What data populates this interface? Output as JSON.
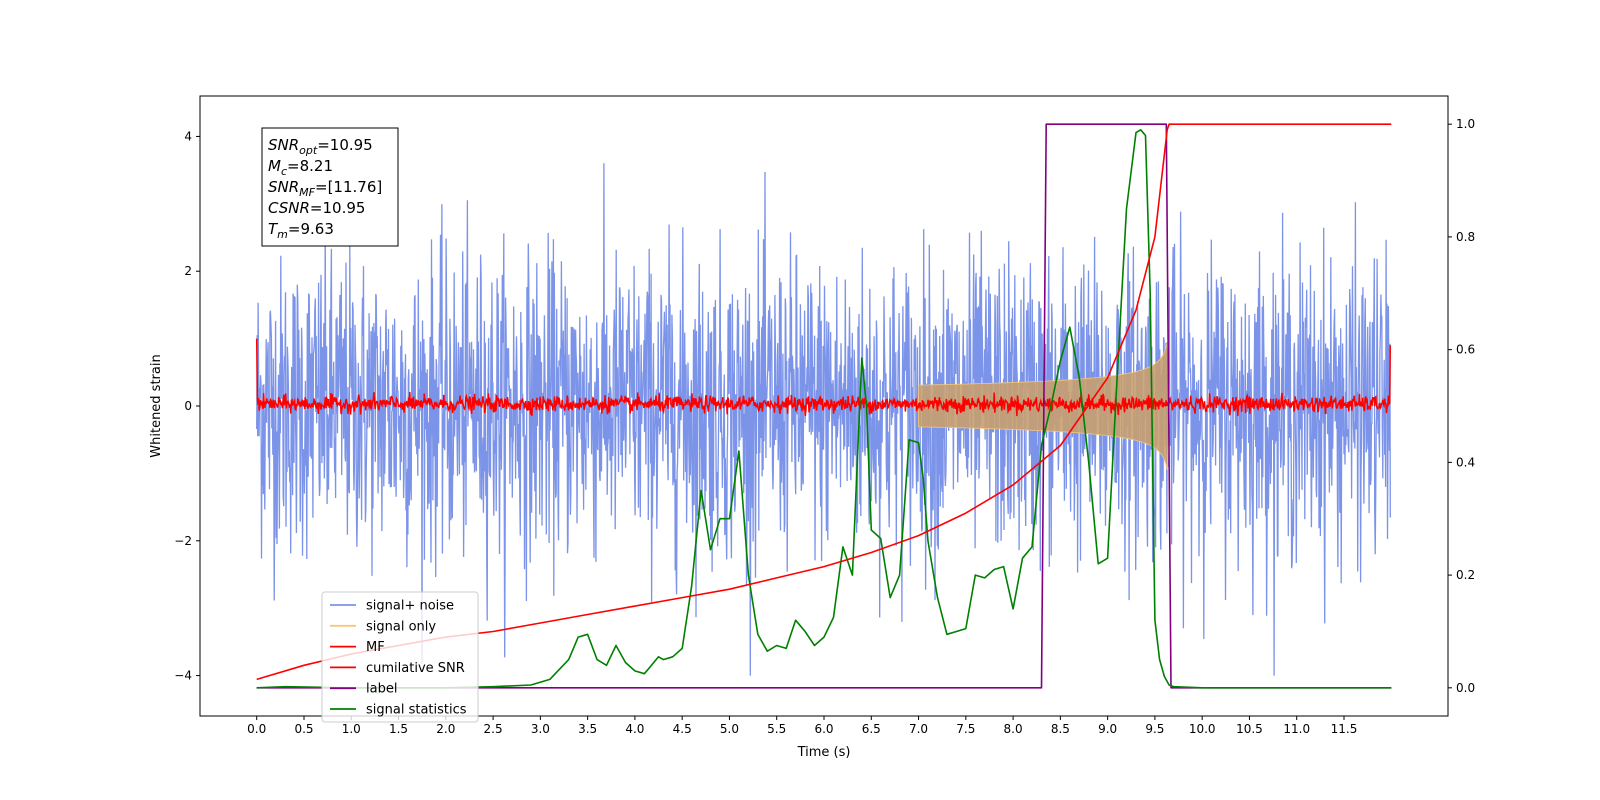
{
  "chart_data": {
    "type": "line",
    "xlabel": "Time (s)",
    "ylabel": "Whitened strain",
    "xlim": [
      -0.6,
      12.6
    ],
    "ylim": [
      -4.6,
      4.6
    ],
    "y2lim": [
      -0.05,
      1.05
    ],
    "x_ticks": [
      "0.0",
      "0.5",
      "1.0",
      "1.5",
      "2.0",
      "2.5",
      "3.0",
      "3.5",
      "4.0",
      "4.5",
      "5.0",
      "5.5",
      "6.0",
      "6.5",
      "7.0",
      "7.5",
      "8.0",
      "8.5",
      "9.0",
      "9.5",
      "10.0",
      "10.5",
      "11.0",
      "11.5"
    ],
    "y_ticks": [
      "4",
      "2",
      "0",
      "−2",
      "−4"
    ],
    "y2_ticks": [
      "1.0",
      "0.8",
      "0.6",
      "0.4",
      "0.2",
      "0.0"
    ],
    "grid": false,
    "legend_placement": "lower-left",
    "colors": {
      "signal_noise": "#7b93e8",
      "signal_only": "#f5c77a",
      "signal_fill": "#c8a070",
      "mf": "#ff0000",
      "cumulative_snr": "#ff0000",
      "label": "#800080",
      "signal_statistics": "#008000"
    },
    "annotation": {
      "lines": [
        {
          "label": "SNR",
          "sub": "opt",
          "value": "=10.95"
        },
        {
          "label": "M",
          "sub": "c",
          "value": "=8.21"
        },
        {
          "label": "SNR",
          "sub": "MF",
          "value": "=[11.76]"
        },
        {
          "label": "CSNR",
          "sub": "",
          "value": "=10.95"
        },
        {
          "label": "T",
          "sub": "m",
          "value": "=9.63"
        }
      ]
    },
    "series": [
      {
        "name": "signal+ noise",
        "axis": "left",
        "style": "noise",
        "amplitude_range": [
          -4.0,
          4.2
        ],
        "x_range": [
          0.0,
          11.99
        ]
      },
      {
        "name": "signal only",
        "axis": "left",
        "style": "chirp",
        "merger_time": 9.63,
        "peak_amplitude": 0.95,
        "x_range": [
          7.0,
          9.66
        ]
      },
      {
        "name": "MF",
        "axis": "left",
        "style": "noise-small",
        "amplitude_range": [
          -0.15,
          0.3
        ],
        "x_range": [
          0.0,
          11.99
        ],
        "edge_values": [
          1.0,
          0.9
        ]
      },
      {
        "name": "cumilative SNR",
        "axis": "right",
        "x": [
          0.0,
          0.5,
          1.0,
          1.5,
          2.0,
          2.5,
          3.0,
          3.5,
          4.0,
          4.5,
          5.0,
          5.5,
          6.0,
          6.5,
          7.0,
          7.5,
          8.0,
          8.5,
          9.0,
          9.3,
          9.5,
          9.63,
          9.65,
          12.0
        ],
        "y": [
          0.015,
          0.04,
          0.06,
          0.075,
          0.09,
          0.1,
          0.115,
          0.13,
          0.145,
          0.16,
          0.175,
          0.195,
          0.215,
          0.24,
          0.27,
          0.31,
          0.36,
          0.43,
          0.55,
          0.67,
          0.8,
          0.99,
          1.0,
          1.0
        ]
      },
      {
        "name": "label",
        "axis": "right",
        "x": [
          0.0,
          8.3,
          8.35,
          9.62,
          9.67,
          12.0
        ],
        "y": [
          0.0,
          0.0,
          1.0,
          1.0,
          0.0,
          0.0
        ]
      },
      {
        "name": "signal statistics",
        "axis": "right",
        "x": [
          0.0,
          0.3,
          1.0,
          2.0,
          2.5,
          2.9,
          3.1,
          3.3,
          3.4,
          3.5,
          3.6,
          3.7,
          3.8,
          3.9,
          4.0,
          4.1,
          4.15,
          4.25,
          4.3,
          4.4,
          4.5,
          4.6,
          4.7,
          4.8,
          4.9,
          5.0,
          5.1,
          5.2,
          5.3,
          5.4,
          5.5,
          5.6,
          5.7,
          5.8,
          5.9,
          6.0,
          6.1,
          6.2,
          6.3,
          6.4,
          6.45,
          6.5,
          6.6,
          6.7,
          6.8,
          6.9,
          7.0,
          7.05,
          7.1,
          7.2,
          7.3,
          7.4,
          7.5,
          7.6,
          7.7,
          7.8,
          7.9,
          8.0,
          8.1,
          8.2,
          8.3,
          8.4,
          8.5,
          8.6,
          8.7,
          8.8,
          8.9,
          9.0,
          9.1,
          9.2,
          9.3,
          9.35,
          9.4,
          9.45,
          9.5,
          9.55,
          9.6,
          9.65,
          9.7,
          10.0,
          12.0
        ],
        "y": [
          0.0,
          0.002,
          0.0,
          0.0,
          0.002,
          0.005,
          0.015,
          0.05,
          0.09,
          0.095,
          0.05,
          0.04,
          0.075,
          0.045,
          0.03,
          0.025,
          0.035,
          0.055,
          0.05,
          0.055,
          0.07,
          0.18,
          0.35,
          0.245,
          0.3,
          0.3,
          0.42,
          0.2,
          0.095,
          0.065,
          0.075,
          0.07,
          0.12,
          0.1,
          0.075,
          0.09,
          0.125,
          0.25,
          0.2,
          0.585,
          0.5,
          0.28,
          0.265,
          0.16,
          0.2,
          0.44,
          0.435,
          0.37,
          0.26,
          0.16,
          0.095,
          0.1,
          0.105,
          0.2,
          0.195,
          0.21,
          0.215,
          0.14,
          0.23,
          0.25,
          0.43,
          0.5,
          0.58,
          0.64,
          0.55,
          0.4,
          0.22,
          0.23,
          0.55,
          0.85,
          0.985,
          0.99,
          0.98,
          0.7,
          0.12,
          0.05,
          0.02,
          0.005,
          0.002,
          0.0,
          0.0
        ]
      }
    ]
  }
}
